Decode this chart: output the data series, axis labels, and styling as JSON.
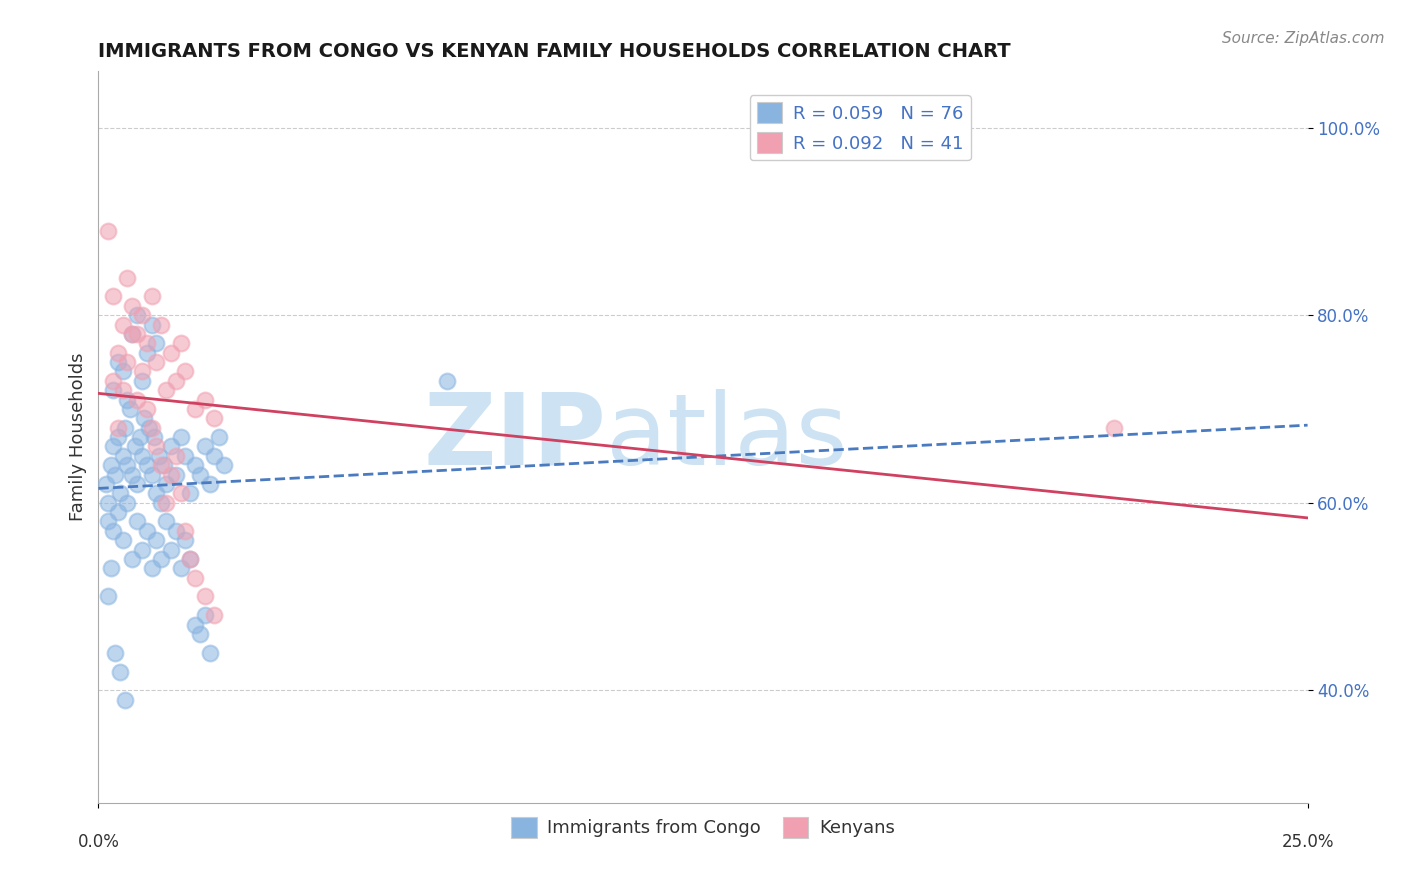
{
  "title": "IMMIGRANTS FROM CONGO VS KENYAN FAMILY HOUSEHOLDS CORRELATION CHART",
  "source": "Source: ZipAtlas.com",
  "ylabel": "Family Households",
  "legend_label_blue": "Immigrants from Congo",
  "legend_label_pink": "Kenyans",
  "xlim": [
    0.0,
    25.0
  ],
  "ylim": [
    28.0,
    106.0
  ],
  "yticks": [
    40.0,
    60.0,
    80.0,
    100.0
  ],
  "ytick_labels": [
    "40.0%",
    "60.0%",
    "80.0%",
    "100.0%"
  ],
  "blue_color": "#8ab4e0",
  "pink_color": "#f0a0b0",
  "blue_line_color": "#4a7abf",
  "pink_line_color": "#d04060",
  "watermark": "ZIPatlas",
  "watermark_color": "#b8d8ee",
  "blue_x": [
    0.15,
    0.2,
    0.25,
    0.3,
    0.35,
    0.4,
    0.45,
    0.5,
    0.55,
    0.6,
    0.65,
    0.7,
    0.75,
    0.8,
    0.85,
    0.9,
    0.95,
    1.0,
    1.05,
    1.1,
    1.15,
    1.2,
    1.25,
    1.3,
    1.35,
    1.4,
    1.5,
    1.6,
    1.7,
    1.8,
    1.9,
    2.0,
    2.1,
    2.2,
    2.3,
    2.4,
    2.5,
    2.6,
    0.2,
    0.3,
    0.4,
    0.5,
    0.6,
    0.7,
    0.8,
    0.9,
    1.0,
    1.1,
    1.2,
    1.3,
    1.4,
    1.5,
    1.6,
    1.7,
    1.8,
    1.9,
    2.0,
    2.1,
    2.2,
    2.3,
    0.3,
    0.4,
    0.5,
    0.6,
    0.7,
    0.8,
    0.9,
    1.0,
    1.1,
    1.2,
    0.2,
    0.25,
    0.35,
    0.45,
    0.55,
    7.2
  ],
  "blue_y": [
    62,
    60,
    64,
    66,
    63,
    67,
    61,
    65,
    68,
    64,
    70,
    63,
    66,
    62,
    67,
    65,
    69,
    64,
    68,
    63,
    67,
    61,
    65,
    60,
    64,
    62,
    66,
    63,
    67,
    65,
    61,
    64,
    63,
    66,
    62,
    65,
    67,
    64,
    58,
    57,
    59,
    56,
    60,
    54,
    58,
    55,
    57,
    53,
    56,
    54,
    58,
    55,
    57,
    53,
    56,
    54,
    47,
    46,
    48,
    44,
    72,
    75,
    74,
    71,
    78,
    80,
    73,
    76,
    79,
    77,
    50,
    53,
    44,
    42,
    39,
    73
  ],
  "pink_x": [
    0.2,
    0.3,
    0.4,
    0.5,
    0.6,
    0.7,
    0.8,
    0.9,
    1.0,
    1.1,
    1.2,
    1.3,
    1.4,
    1.5,
    1.6,
    1.7,
    1.8,
    2.0,
    2.2,
    2.4,
    0.3,
    0.4,
    0.5,
    0.6,
    0.7,
    0.8,
    0.9,
    1.0,
    1.1,
    1.2,
    1.3,
    1.4,
    1.5,
    1.6,
    1.7,
    1.8,
    1.9,
    2.0,
    2.2,
    2.4,
    21.0
  ],
  "pink_y": [
    89,
    82,
    76,
    79,
    84,
    81,
    78,
    80,
    77,
    82,
    75,
    79,
    72,
    76,
    73,
    77,
    74,
    70,
    71,
    69,
    73,
    68,
    72,
    75,
    78,
    71,
    74,
    70,
    68,
    66,
    64,
    60,
    63,
    65,
    61,
    57,
    54,
    52,
    50,
    48,
    68
  ]
}
